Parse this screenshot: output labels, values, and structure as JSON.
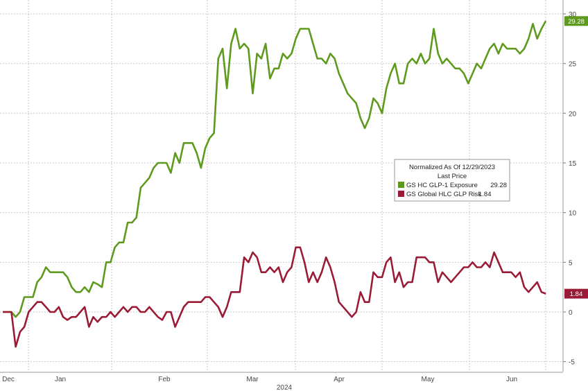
{
  "chart_data": {
    "type": "line",
    "title": "",
    "xlabel": "2024",
    "ylabel": "",
    "ylim": [
      -6,
      30
    ],
    "y_ticks": [
      -5,
      0,
      5,
      10,
      15,
      20,
      25,
      30
    ],
    "x_ticks": [
      "Dec",
      "Jan",
      "Feb",
      "Mar",
      "Apr",
      "May",
      "Jun"
    ],
    "x_year_label": "2024",
    "grid": true,
    "legend": {
      "placement": "center-right",
      "header1": "Normalized As Of 12/29/2023",
      "header2": "Last Price",
      "entries": [
        {
          "label": "GS HC GLP-1 Exposure",
          "value": "29.28"
        },
        {
          "label": "GS Global HLC GLP Risk",
          "value": "1.84"
        }
      ]
    },
    "series": [
      {
        "name": "GS HC GLP-1 Exposure",
        "color": "#5e9a1d",
        "last_value_label": "29.28",
        "points": [
          [
            0.0,
            0
          ],
          [
            1.0,
            0
          ],
          [
            1.5,
            -0.5
          ],
          [
            2.0,
            0
          ],
          [
            2.5,
            1.5
          ],
          [
            3.5,
            1.5
          ],
          [
            4.0,
            3
          ],
          [
            4.5,
            3.5
          ],
          [
            5.0,
            4.5
          ],
          [
            5.5,
            4
          ],
          [
            6.0,
            4
          ],
          [
            7.0,
            4
          ],
          [
            7.5,
            3.5
          ],
          [
            8.0,
            2.5
          ],
          [
            8.5,
            2
          ],
          [
            9.0,
            2
          ],
          [
            9.5,
            2.5
          ],
          [
            10.0,
            2
          ],
          [
            10.5,
            3
          ],
          [
            11.0,
            2.8
          ],
          [
            11.5,
            2.5
          ],
          [
            12.0,
            5
          ],
          [
            12.5,
            5
          ],
          [
            13.0,
            6.5
          ],
          [
            13.5,
            7
          ],
          [
            14.0,
            7
          ],
          [
            14.5,
            9
          ],
          [
            15.0,
            9
          ],
          [
            15.5,
            9.5
          ],
          [
            16.0,
            12.5
          ],
          [
            16.5,
            13
          ],
          [
            17.0,
            13.5
          ],
          [
            17.5,
            14.5
          ],
          [
            18.0,
            15
          ],
          [
            18.5,
            15
          ],
          [
            19.0,
            15
          ],
          [
            19.5,
            14
          ],
          [
            20.0,
            16
          ],
          [
            20.5,
            15
          ],
          [
            21.0,
            17
          ],
          [
            21.5,
            17
          ],
          [
            22.0,
            17
          ],
          [
            22.5,
            16
          ],
          [
            23.0,
            14.5
          ],
          [
            23.5,
            16.5
          ],
          [
            24.0,
            17.5
          ],
          [
            24.5,
            18
          ],
          [
            25.0,
            25.5
          ],
          [
            25.5,
            26.5
          ],
          [
            26.0,
            22.5
          ],
          [
            26.5,
            27
          ],
          [
            27.0,
            28.5
          ],
          [
            27.5,
            26.5
          ],
          [
            28.0,
            27
          ],
          [
            28.5,
            26.5
          ],
          [
            29.0,
            22
          ],
          [
            29.5,
            26
          ],
          [
            30.0,
            25.5
          ],
          [
            30.5,
            27
          ],
          [
            31.0,
            23.5
          ],
          [
            31.5,
            24.5
          ],
          [
            32.0,
            24.5
          ],
          [
            32.5,
            26
          ],
          [
            33.0,
            25.5
          ],
          [
            33.5,
            26
          ],
          [
            34.0,
            27.5
          ],
          [
            34.5,
            28.5
          ],
          [
            35.0,
            28.5
          ],
          [
            35.5,
            28.5
          ],
          [
            36.0,
            27
          ],
          [
            36.5,
            25.5
          ],
          [
            37.0,
            25.5
          ],
          [
            37.5,
            25
          ],
          [
            38.0,
            26
          ],
          [
            38.5,
            25.5
          ],
          [
            39.0,
            24
          ],
          [
            39.5,
            23
          ],
          [
            40.0,
            22
          ],
          [
            40.5,
            21.5
          ],
          [
            41.0,
            21
          ],
          [
            41.5,
            19.5
          ],
          [
            42.0,
            18.5
          ],
          [
            42.5,
            19.5
          ],
          [
            43.0,
            21.5
          ],
          [
            43.5,
            21
          ],
          [
            44.0,
            20
          ],
          [
            44.5,
            22.5
          ],
          [
            45.0,
            24
          ],
          [
            45.5,
            25
          ],
          [
            46.0,
            23
          ],
          [
            46.5,
            23
          ],
          [
            47.0,
            25
          ],
          [
            47.5,
            25.5
          ],
          [
            48.0,
            25
          ],
          [
            48.5,
            26
          ],
          [
            49.0,
            25
          ],
          [
            49.5,
            25.5
          ],
          [
            50.0,
            28.5
          ],
          [
            50.5,
            26
          ],
          [
            51.0,
            25
          ],
          [
            51.5,
            25.5
          ],
          [
            52.0,
            25
          ],
          [
            52.5,
            24.5
          ],
          [
            53.0,
            24.5
          ],
          [
            53.5,
            24
          ],
          [
            54.0,
            23
          ],
          [
            54.5,
            24
          ],
          [
            55.0,
            25
          ],
          [
            55.5,
            24.5
          ],
          [
            56.0,
            25.5
          ],
          [
            56.5,
            26.5
          ],
          [
            57.0,
            27
          ],
          [
            57.5,
            26
          ],
          [
            58.0,
            27
          ],
          [
            58.5,
            26.5
          ],
          [
            59.0,
            26.5
          ],
          [
            59.5,
            26.5
          ],
          [
            60.0,
            26
          ],
          [
            60.5,
            26.5
          ],
          [
            61.0,
            27.5
          ],
          [
            61.5,
            29
          ],
          [
            62.0,
            27.5
          ],
          [
            62.5,
            28.5
          ],
          [
            63.0,
            29.28
          ]
        ]
      },
      {
        "name": "GS Global HLC GLP Risk",
        "color": "#9b1b36",
        "last_value_label": "1.84",
        "points": [
          [
            0.0,
            0
          ],
          [
            0.5,
            0
          ],
          [
            1.0,
            0
          ],
          [
            1.5,
            -3.5
          ],
          [
            2.0,
            -2
          ],
          [
            2.5,
            -1.5
          ],
          [
            3.0,
            0
          ],
          [
            3.5,
            0.5
          ],
          [
            4.0,
            1
          ],
          [
            4.5,
            1
          ],
          [
            5.0,
            0.5
          ],
          [
            5.5,
            0
          ],
          [
            6.0,
            0
          ],
          [
            6.5,
            0.5
          ],
          [
            7.0,
            -0.5
          ],
          [
            7.5,
            -0.8
          ],
          [
            8.0,
            -0.5
          ],
          [
            8.5,
            -0.5
          ],
          [
            9.0,
            0
          ],
          [
            9.5,
            0.5
          ],
          [
            10.0,
            -1.5
          ],
          [
            10.5,
            -0.5
          ],
          [
            11.0,
            -1
          ],
          [
            11.5,
            -0.5
          ],
          [
            12.0,
            -0.5
          ],
          [
            12.5,
            0
          ],
          [
            13.0,
            -0.5
          ],
          [
            13.5,
            0
          ],
          [
            14.0,
            0.5
          ],
          [
            14.5,
            0
          ],
          [
            15.0,
            0.5
          ],
          [
            15.5,
            0.5
          ],
          [
            16.0,
            0
          ],
          [
            16.5,
            0
          ],
          [
            17.0,
            0.5
          ],
          [
            17.5,
            0
          ],
          [
            18.0,
            -0.5
          ],
          [
            18.5,
            -0.8
          ],
          [
            19.0,
            0
          ],
          [
            19.5,
            0
          ],
          [
            20.0,
            -1.5
          ],
          [
            20.5,
            -0.5
          ],
          [
            21.0,
            0.5
          ],
          [
            21.5,
            1
          ],
          [
            22.0,
            1
          ],
          [
            22.5,
            1
          ],
          [
            23.0,
            1
          ],
          [
            23.5,
            1.5
          ],
          [
            24.0,
            1.5
          ],
          [
            24.5,
            1
          ],
          [
            25.0,
            0.5
          ],
          [
            25.5,
            -0.5
          ],
          [
            26.0,
            0.5
          ],
          [
            26.5,
            2
          ],
          [
            27.0,
            2
          ],
          [
            27.5,
            2
          ],
          [
            28.0,
            5.5
          ],
          [
            28.5,
            5
          ],
          [
            29.0,
            6
          ],
          [
            29.5,
            5.5
          ],
          [
            30.0,
            4
          ],
          [
            30.5,
            4
          ],
          [
            31.0,
            4.5
          ],
          [
            31.5,
            4
          ],
          [
            32.0,
            4.5
          ],
          [
            32.5,
            3
          ],
          [
            33.0,
            4
          ],
          [
            33.5,
            4.5
          ],
          [
            34.0,
            6.5
          ],
          [
            34.5,
            6.5
          ],
          [
            35.0,
            5
          ],
          [
            35.5,
            3
          ],
          [
            36.0,
            4
          ],
          [
            36.5,
            3
          ],
          [
            37.0,
            4
          ],
          [
            37.5,
            5.5
          ],
          [
            38.0,
            4.5
          ],
          [
            38.5,
            3
          ],
          [
            39.0,
            1
          ],
          [
            39.5,
            0.5
          ],
          [
            40.0,
            0
          ],
          [
            40.5,
            -0.5
          ],
          [
            41.0,
            0
          ],
          [
            41.5,
            2
          ],
          [
            42.0,
            1
          ],
          [
            42.5,
            1
          ],
          [
            43.0,
            4
          ],
          [
            43.5,
            3.5
          ],
          [
            44.0,
            3.5
          ],
          [
            44.5,
            5
          ],
          [
            45.0,
            5.5
          ],
          [
            45.5,
            3
          ],
          [
            46.0,
            4
          ],
          [
            46.5,
            2.5
          ],
          [
            47.0,
            3
          ],
          [
            47.5,
            3
          ],
          [
            48.0,
            5.5
          ],
          [
            48.5,
            5.5
          ],
          [
            49.0,
            5.5
          ],
          [
            49.5,
            5
          ],
          [
            50.0,
            5
          ],
          [
            50.5,
            3
          ],
          [
            51.0,
            4
          ],
          [
            51.5,
            3.5
          ],
          [
            52.0,
            3
          ],
          [
            52.5,
            3.5
          ],
          [
            53.0,
            4
          ],
          [
            53.5,
            4.5
          ],
          [
            54.0,
            4.5
          ],
          [
            54.5,
            5
          ],
          [
            55.0,
            4.5
          ],
          [
            55.5,
            4.5
          ],
          [
            56.0,
            5
          ],
          [
            56.5,
            4.5
          ],
          [
            57.0,
            6
          ],
          [
            57.5,
            5
          ],
          [
            58.0,
            4
          ],
          [
            58.5,
            4
          ],
          [
            59.0,
            4
          ],
          [
            59.5,
            3.5
          ],
          [
            60.0,
            4
          ],
          [
            60.5,
            2.5
          ],
          [
            61.0,
            2
          ],
          [
            61.5,
            2.5
          ],
          [
            62.0,
            3
          ],
          [
            62.5,
            2
          ],
          [
            63.0,
            1.84
          ]
        ]
      }
    ]
  }
}
